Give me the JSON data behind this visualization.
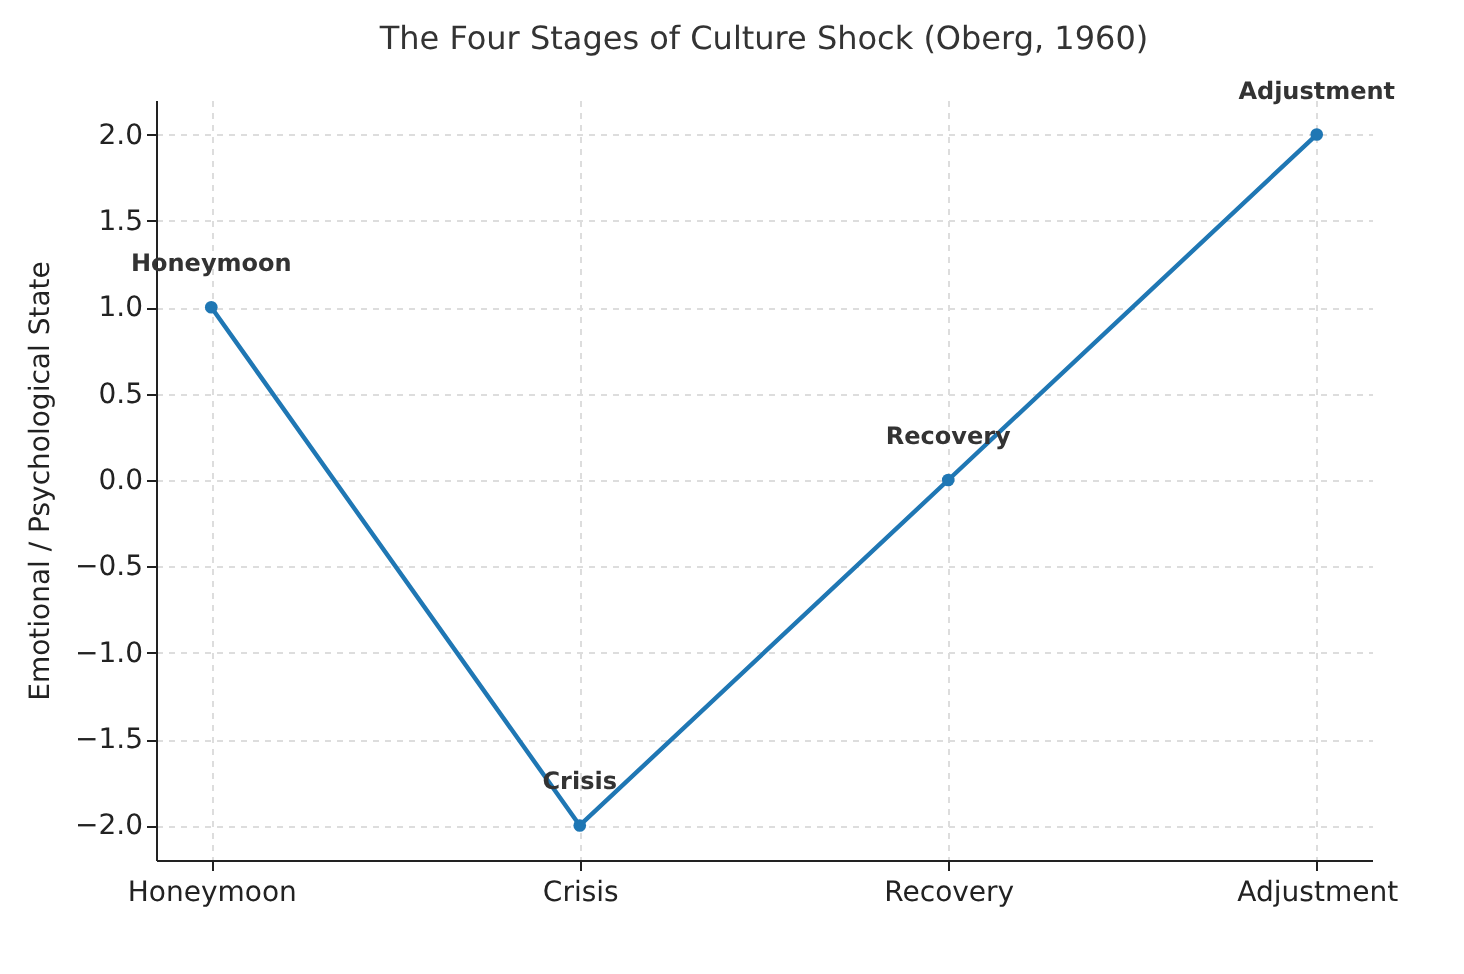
{
  "chart_data": {
    "type": "line",
    "title": "The Four Stages of Culture Shock (Oberg, 1960)",
    "ylabel": "Emotional / Psychological State",
    "categories": [
      "Honeymoon",
      "Crisis",
      "Recovery",
      "Adjustment"
    ],
    "series": [
      {
        "color": "#1f77b4",
        "values": [
          1,
          -2,
          0,
          2
        ]
      }
    ],
    "ylim": [
      -2.2,
      2.2
    ],
    "yticks": [
      {
        "value": -2,
        "label": "−2.0"
      },
      {
        "value": -1.5,
        "label": "−1.5"
      },
      {
        "value": -1,
        "label": "−1.0"
      },
      {
        "value": -0.5,
        "label": "−0.5"
      },
      {
        "value": 0,
        "label": "0.0"
      },
      {
        "value": 0.5,
        "label": "0.5"
      },
      {
        "value": 1,
        "label": "1.0"
      },
      {
        "value": 1.5,
        "label": "1.5"
      },
      {
        "value": 2,
        "label": "2.0"
      }
    ],
    "annotations": [
      {
        "text": "Honeymoon",
        "x": "Honeymoon",
        "y": 1
      },
      {
        "text": "Crisis",
        "x": "Crisis",
        "y": -2
      },
      {
        "text": "Recovery",
        "x": "Recovery",
        "y": 0
      },
      {
        "text": "Adjustment",
        "x": "Adjustment",
        "y": 2
      }
    ],
    "grid": true,
    "marker": "circle",
    "line_style": "solid"
  }
}
